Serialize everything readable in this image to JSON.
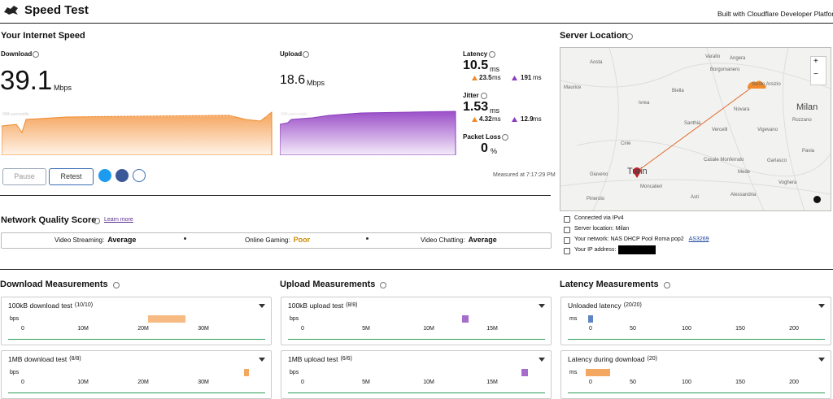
{
  "header": {
    "title": "Speed Test",
    "credit": "Built with Cloudflare Developer Platform"
  },
  "speed": {
    "heading": "Your Internet Speed",
    "download": {
      "label": "Download",
      "value": "39.1",
      "unit": "Mbps"
    },
    "upload": {
      "label": "Upload",
      "value": "18.6",
      "unit": "Mbps"
    },
    "percentile_label": "90th percentile",
    "latency": {
      "label": "Latency",
      "value": "10.5",
      "unit": "ms",
      "down": "23.5",
      "down_unit": "ms",
      "up": "191",
      "up_unit": "ms"
    },
    "jitter": {
      "label": "Jitter",
      "value": "1.53",
      "unit": "ms",
      "down": "4.32",
      "down_unit": "ms",
      "up": "12.9",
      "up_unit": "ms"
    },
    "packet_loss": {
      "label": "Packet Loss",
      "value": "0",
      "unit": "%"
    },
    "buttons": [
      "Pause",
      "Retest"
    ],
    "measured": "Measured at 7:17:29 PM"
  },
  "quality": {
    "heading": "Network Quality Score",
    "link": "Learn more",
    "items": [
      {
        "label": "Video Streaming:",
        "value": "Average"
      },
      {
        "label": "Online Gaming:",
        "value": "Poor"
      },
      {
        "label": "Video Chatting:",
        "value": "Average"
      }
    ]
  },
  "server": {
    "heading": "Server Location",
    "map_labels": [
      "Aosta",
      "Varallo",
      "Angera",
      "Borgomanero",
      "Busto Arsizio",
      "Maurice",
      "Biella",
      "Milan",
      "Ivrea",
      "Novara",
      "Santhià",
      "Rozzano",
      "Vercelli",
      "Vigevano",
      "Ciriè",
      "Casale Monferrato",
      "Pavia",
      "Giaveno",
      "Turin",
      "Mede",
      "Garlasco",
      "Moncalieri",
      "Voghera",
      "Pinerolo",
      "Asti",
      "Alessandria"
    ],
    "zoom": [
      "+",
      "−"
    ],
    "info": [
      {
        "text": "Connected via IPv4"
      },
      {
        "text": "Server location: Milan"
      },
      {
        "text": "Your network: NAS DHCP Pool Roma pop2",
        "link": "AS3269"
      },
      {
        "text": "Your IP address:"
      }
    ]
  },
  "measurements": [
    {
      "heading": "Download Measurements",
      "panels": [
        {
          "title": "100kB download test",
          "count": "(10/10)",
          "unit": "bps",
          "ticks": [
            "0",
            "10M",
            "20M",
            "30M"
          ]
        },
        {
          "title": "1MB download test",
          "count": "(8/8)",
          "unit": "bps",
          "ticks": [
            "0",
            "10M",
            "20M",
            "30M"
          ]
        }
      ]
    },
    {
      "heading": "Upload Measurements",
      "panels": [
        {
          "title": "100kB upload test",
          "count": "(8/8)",
          "unit": "bps",
          "ticks": [
            "0",
            "5M",
            "10M",
            "15M"
          ]
        },
        {
          "title": "1MB upload test",
          "count": "(6/6)",
          "unit": "bps",
          "ticks": [
            "0",
            "5M",
            "10M",
            "15M"
          ]
        }
      ]
    },
    {
      "heading": "Latency Measurements",
      "panels": [
        {
          "title": "Unloaded latency",
          "count": "(20/20)",
          "unit": "ms",
          "ticks": [
            "0",
            "50",
            "100",
            "150",
            "200"
          ]
        },
        {
          "title": "Latency during download",
          "count": "(20)",
          "unit": "ms",
          "ticks": [
            "0",
            "50",
            "100",
            "150",
            "200"
          ]
        }
      ]
    }
  ]
}
